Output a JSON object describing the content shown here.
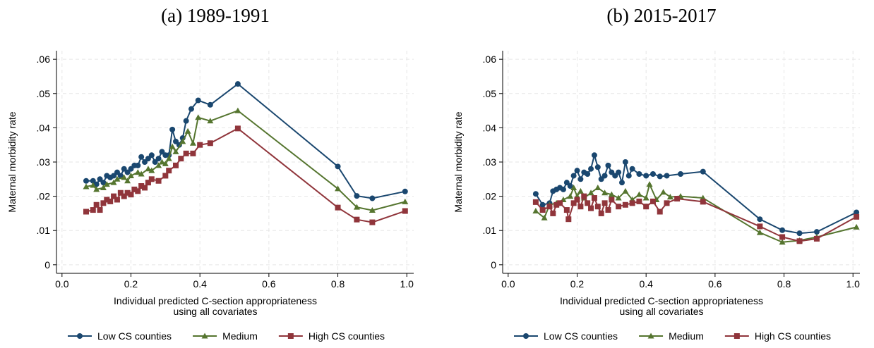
{
  "chart_data": [
    {
      "type": "line",
      "title": "(a) 1989-1991",
      "ylabel": "Maternal morbidity rate",
      "xlabel": [
        "Individual predicted C-section appropriateness",
        "using all covariates"
      ],
      "xlim": [
        -0.016,
        1.02
      ],
      "ylim": [
        -0.0025,
        0.0625
      ],
      "xticks": [
        {
          "value": 0,
          "label": "0.0"
        },
        {
          "value": 0.2,
          "label": "0.2"
        },
        {
          "value": 0.4,
          "label": "0.4"
        },
        {
          "value": 0.6,
          "label": "0.6"
        },
        {
          "value": 0.8,
          "label": "0.8"
        },
        {
          "value": 1,
          "label": "1.0"
        }
      ],
      "yticks": [
        0,
        {
          "value": 0.01,
          "label": ".01"
        },
        {
          "value": 0.02,
          "label": ".02"
        },
        {
          "value": 0.03,
          "label": ".03"
        },
        {
          "value": 0.04,
          "label": ".04"
        },
        {
          "value": 0.05,
          "label": ".05"
        },
        {
          "value": 0.06,
          "label": ".06"
        }
      ],
      "grid": true,
      "legend": "bottom",
      "series": [
        {
          "name": "Low CS counties",
          "color": "#1a476f",
          "marker": "circle",
          "x": [
            0.07,
            0.09,
            0.1,
            0.11,
            0.12,
            0.13,
            0.14,
            0.15,
            0.16,
            0.17,
            0.18,
            0.19,
            0.2,
            0.21,
            0.22,
            0.23,
            0.24,
            0.25,
            0.26,
            0.27,
            0.28,
            0.29,
            0.3,
            0.31,
            0.32,
            0.33,
            0.34,
            0.35,
            0.36,
            0.375,
            0.395,
            0.43,
            0.51,
            0.8,
            0.855,
            0.9,
            0.995
          ],
          "values": [
            0.0245,
            0.0245,
            0.0235,
            0.025,
            0.024,
            0.026,
            0.0255,
            0.026,
            0.027,
            0.026,
            0.028,
            0.027,
            0.028,
            0.029,
            0.029,
            0.0315,
            0.03,
            0.031,
            0.032,
            0.03,
            0.031,
            0.033,
            0.032,
            0.032,
            0.0395,
            0.036,
            0.035,
            0.037,
            0.042,
            0.0455,
            0.048,
            0.0467,
            0.0528,
            0.0287,
            0.0201,
            0.0194,
            0.0214
          ]
        },
        {
          "name": "Medium",
          "color": "#55752f",
          "marker": "triangle",
          "x": [
            0.07,
            0.09,
            0.1,
            0.12,
            0.13,
            0.15,
            0.16,
            0.18,
            0.19,
            0.2,
            0.22,
            0.23,
            0.25,
            0.26,
            0.28,
            0.29,
            0.3,
            0.31,
            0.32,
            0.33,
            0.35,
            0.365,
            0.38,
            0.395,
            0.43,
            0.51,
            0.8,
            0.855,
            0.9,
            0.995
          ],
          "values": [
            0.0228,
            0.0232,
            0.022,
            0.0225,
            0.0235,
            0.024,
            0.025,
            0.0255,
            0.0245,
            0.026,
            0.027,
            0.0265,
            0.028,
            0.0275,
            0.029,
            0.03,
            0.0295,
            0.031,
            0.0345,
            0.033,
            0.036,
            0.039,
            0.0355,
            0.043,
            0.042,
            0.045,
            0.0222,
            0.0168,
            0.0159,
            0.0184
          ]
        },
        {
          "name": "High CS counties",
          "color": "#90353b",
          "marker": "square",
          "x": [
            0.07,
            0.09,
            0.1,
            0.11,
            0.12,
            0.13,
            0.14,
            0.15,
            0.16,
            0.17,
            0.18,
            0.19,
            0.2,
            0.21,
            0.22,
            0.23,
            0.24,
            0.25,
            0.26,
            0.28,
            0.3,
            0.31,
            0.33,
            0.345,
            0.36,
            0.38,
            0.4,
            0.43,
            0.51,
            0.8,
            0.855,
            0.9,
            0.995
          ],
          "values": [
            0.0155,
            0.016,
            0.0175,
            0.016,
            0.018,
            0.019,
            0.0185,
            0.02,
            0.019,
            0.021,
            0.02,
            0.021,
            0.0205,
            0.022,
            0.0215,
            0.023,
            0.0225,
            0.024,
            0.025,
            0.0245,
            0.026,
            0.0275,
            0.029,
            0.031,
            0.0325,
            0.0325,
            0.035,
            0.0355,
            0.0398,
            0.0167,
            0.0132,
            0.0124,
            0.0157
          ]
        }
      ]
    },
    {
      "type": "line",
      "title": "(b) 2015-2017",
      "ylabel": "Maternal morbidity rate",
      "xlabel": [
        "Individual predicted C-section appropriateness",
        "using all covariates"
      ],
      "xlim": [
        -0.016,
        1.02
      ],
      "ylim": [
        -0.0025,
        0.0625
      ],
      "xticks": [
        {
          "value": 0,
          "label": "0.0"
        },
        {
          "value": 0.2,
          "label": "0.2"
        },
        {
          "value": 0.4,
          "label": "0.4"
        },
        {
          "value": 0.6,
          "label": "0.6"
        },
        {
          "value": 0.8,
          "label": "0.8"
        },
        {
          "value": 1,
          "label": "1.0"
        }
      ],
      "yticks": [
        0,
        {
          "value": 0.01,
          "label": ".01"
        },
        {
          "value": 0.02,
          "label": ".02"
        },
        {
          "value": 0.03,
          "label": ".03"
        },
        {
          "value": 0.04,
          "label": ".04"
        },
        {
          "value": 0.05,
          "label": ".05"
        },
        {
          "value": 0.06,
          "label": ".06"
        }
      ],
      "grid": true,
      "legend": "bottom",
      "series": [
        {
          "name": "Low CS counties",
          "color": "#1a476f",
          "marker": "circle",
          "x": [
            0.08,
            0.1,
            0.12,
            0.13,
            0.14,
            0.15,
            0.16,
            0.17,
            0.18,
            0.19,
            0.2,
            0.21,
            0.22,
            0.23,
            0.24,
            0.25,
            0.26,
            0.27,
            0.28,
            0.29,
            0.3,
            0.31,
            0.32,
            0.33,
            0.34,
            0.35,
            0.36,
            0.38,
            0.4,
            0.42,
            0.44,
            0.46,
            0.5,
            0.565,
            0.73,
            0.795,
            0.845,
            0.895,
            1.01
          ],
          "values": [
            0.0207,
            0.0175,
            0.018,
            0.0215,
            0.022,
            0.0225,
            0.022,
            0.024,
            0.023,
            0.026,
            0.0275,
            0.025,
            0.027,
            0.0265,
            0.028,
            0.032,
            0.0285,
            0.025,
            0.026,
            0.029,
            0.027,
            0.026,
            0.027,
            0.024,
            0.03,
            0.026,
            0.028,
            0.0265,
            0.026,
            0.0265,
            0.0258,
            0.026,
            0.0265,
            0.0272,
            0.0133,
            0.0101,
            0.0092,
            0.0096,
            0.0153
          ]
        },
        {
          "name": "Medium",
          "color": "#55752f",
          "marker": "triangle",
          "x": [
            0.08,
            0.105,
            0.12,
            0.14,
            0.16,
            0.18,
            0.19,
            0.2,
            0.21,
            0.22,
            0.24,
            0.26,
            0.28,
            0.3,
            0.32,
            0.34,
            0.36,
            0.38,
            0.4,
            0.41,
            0.43,
            0.45,
            0.47,
            0.5,
            0.565,
            0.73,
            0.795,
            0.845,
            0.895,
            1.01
          ],
          "values": [
            0.0157,
            0.0137,
            0.0175,
            0.018,
            0.019,
            0.02,
            0.0225,
            0.02,
            0.0215,
            0.0195,
            0.021,
            0.0225,
            0.021,
            0.0205,
            0.0195,
            0.0215,
            0.019,
            0.0205,
            0.0195,
            0.0235,
            0.019,
            0.0212,
            0.0198,
            0.02,
            0.0195,
            0.0094,
            0.0066,
            0.0071,
            0.0081,
            0.011
          ]
        },
        {
          "name": "High CS counties",
          "color": "#90353b",
          "marker": "square",
          "x": [
            0.08,
            0.1,
            0.12,
            0.13,
            0.14,
            0.15,
            0.17,
            0.175,
            0.19,
            0.2,
            0.21,
            0.22,
            0.23,
            0.24,
            0.25,
            0.26,
            0.27,
            0.28,
            0.29,
            0.3,
            0.32,
            0.34,
            0.36,
            0.38,
            0.4,
            0.42,
            0.44,
            0.46,
            0.49,
            0.565,
            0.73,
            0.795,
            0.845,
            0.895,
            1.01
          ],
          "values": [
            0.0183,
            0.016,
            0.017,
            0.015,
            0.0175,
            0.018,
            0.016,
            0.0133,
            0.018,
            0.019,
            0.017,
            0.02,
            0.018,
            0.0165,
            0.0195,
            0.017,
            0.015,
            0.018,
            0.016,
            0.019,
            0.017,
            0.0175,
            0.018,
            0.0185,
            0.017,
            0.0185,
            0.0155,
            0.018,
            0.0193,
            0.0184,
            0.0112,
            0.0081,
            0.0069,
            0.0076,
            0.014
          ]
        }
      ]
    }
  ]
}
